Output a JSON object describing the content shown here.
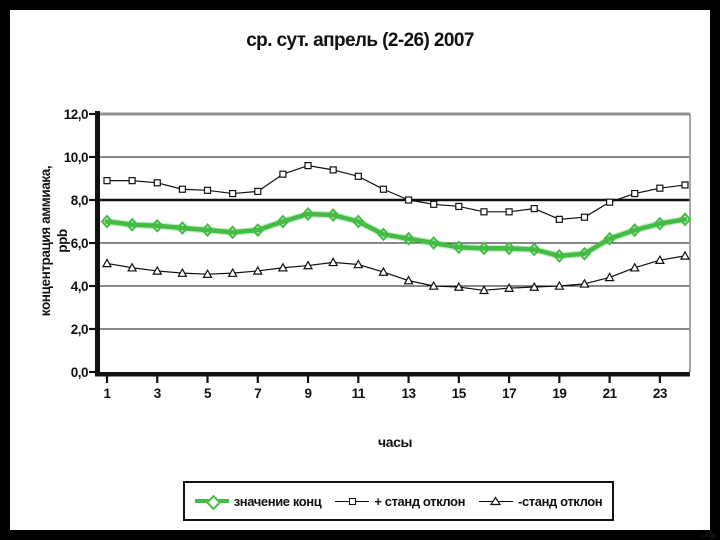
{
  "colors": {
    "background": "#000000",
    "panel": "#ffffff",
    "axis": "#111111",
    "grid": "#111111",
    "border_gray": "#909090",
    "green": "#44bc44"
  },
  "chart_data": {
    "type": "line",
    "title": "ср. сут. апрель (2-26) 2007",
    "xlabel": "часы",
    "ylabel": "концентрация аммиака, ppb",
    "ylabel_lines": [
      "концентрация аммиака,",
      "ppb"
    ],
    "x": [
      1,
      2,
      3,
      4,
      5,
      6,
      7,
      8,
      9,
      10,
      11,
      12,
      13,
      14,
      15,
      16,
      17,
      18,
      19,
      20,
      21,
      22,
      23,
      24
    ],
    "x_tick_labels": [
      "1",
      "3",
      "5",
      "7",
      "9",
      "11",
      "13",
      "15",
      "17",
      "19",
      "21",
      "23"
    ],
    "ylim": [
      0,
      12
    ],
    "y_tick_values": [
      0,
      2,
      4,
      6,
      8,
      10,
      12
    ],
    "y_tick_labels": [
      "0,0",
      "2,0",
      "4,0",
      "6,0",
      "8,0",
      "10,0",
      "12,0"
    ],
    "grid": "horizontal-only",
    "emphasized_gridline": 8,
    "legend_position": "bottom",
    "series": [
      {
        "name": "+ станд отклон",
        "marker": "square",
        "color": "#111111",
        "line_width": 1.2,
        "values": [
          8.9,
          8.9,
          8.8,
          8.5,
          8.45,
          8.3,
          8.4,
          9.2,
          9.6,
          9.4,
          9.1,
          8.5,
          8.0,
          7.8,
          7.7,
          7.45,
          7.45,
          7.6,
          7.1,
          7.2,
          7.9,
          8.3,
          8.55,
          8.7
        ]
      },
      {
        "name": "-станд отклон",
        "marker": "triangle",
        "color": "#111111",
        "line_width": 1.2,
        "values": [
          5.05,
          4.85,
          4.7,
          4.6,
          4.55,
          4.6,
          4.7,
          4.85,
          4.95,
          5.1,
          5.0,
          4.65,
          4.25,
          4.0,
          3.95,
          3.8,
          3.9,
          3.95,
          4.0,
          4.1,
          4.4,
          4.85,
          5.2,
          5.4
        ]
      },
      {
        "name": "значение конц",
        "marker": "diamond",
        "color": "#44bc44",
        "line_width": 4.5,
        "values": [
          7.0,
          6.85,
          6.8,
          6.7,
          6.6,
          6.5,
          6.6,
          7.0,
          7.35,
          7.3,
          7.0,
          6.4,
          6.2,
          6.0,
          5.8,
          5.75,
          5.75,
          5.7,
          5.4,
          5.5,
          6.2,
          6.6,
          6.9,
          7.1
        ]
      }
    ],
    "legend_order": [
      "значение конц",
      "+ станд отклон",
      "-станд отклон"
    ]
  }
}
